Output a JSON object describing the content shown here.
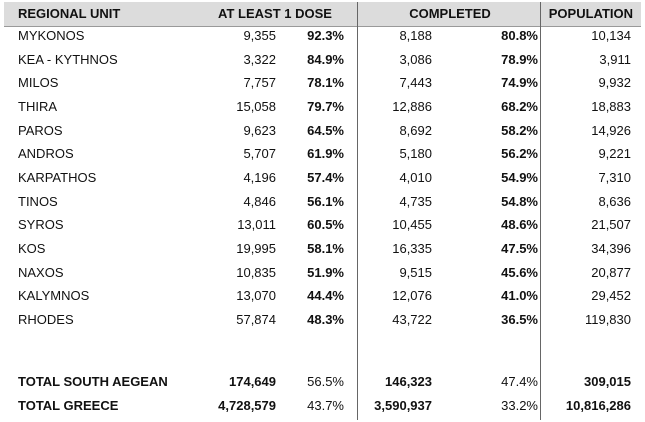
{
  "table": {
    "header": [
      "REGIONAL UNIT",
      "AT LEAST 1 DOSE",
      "COMPLETED",
      "POPULATION"
    ],
    "rows": [
      [
        "MYKONOS",
        "9,355",
        "92.3%",
        "8,188",
        "80.8%",
        "10,134"
      ],
      [
        "KEA - KYTHNOS",
        "3,322",
        "84.9%",
        "3,086",
        "78.9%",
        "3,911"
      ],
      [
        "MILOS",
        "7,757",
        "78.1%",
        "7,443",
        "74.9%",
        "9,932"
      ],
      [
        "THIRA",
        "15,058",
        "79.7%",
        "12,886",
        "68.2%",
        "18,883"
      ],
      [
        "PAROS",
        "9,623",
        "64.5%",
        "8,692",
        "58.2%",
        "14,926"
      ],
      [
        "ANDROS",
        "5,707",
        "61.9%",
        "5,180",
        "56.2%",
        "9,221"
      ],
      [
        "KARPATHOS",
        "4,196",
        "57.4%",
        "4,010",
        "54.9%",
        "7,310"
      ],
      [
        "TINOS",
        "4,846",
        "56.1%",
        "4,735",
        "54.8%",
        "8,636"
      ],
      [
        "SYROS",
        "13,011",
        "60.5%",
        "10,455",
        "48.6%",
        "21,507"
      ],
      [
        "KOS",
        "19,995",
        "58.1%",
        "16,335",
        "47.5%",
        "34,396"
      ],
      [
        "NAXOS",
        "10,835",
        "51.9%",
        "9,515",
        "45.6%",
        "20,877"
      ],
      [
        "KALYMNOS",
        "13,070",
        "44.4%",
        "12,076",
        "41.0%",
        "29,452"
      ],
      [
        "RHODES",
        "57,874",
        "48.3%",
        "43,722",
        "36.5%",
        "119,830"
      ]
    ],
    "totals": [
      [
        "TOTAL SOUTH AEGEAN",
        "174,649",
        "56.5%",
        "146,323",
        "47.4%",
        "309,015"
      ],
      [
        "TOTAL GREECE",
        "4,728,579",
        "43.7%",
        "3,590,937",
        "33.2%",
        "10,816,286"
      ]
    ]
  }
}
